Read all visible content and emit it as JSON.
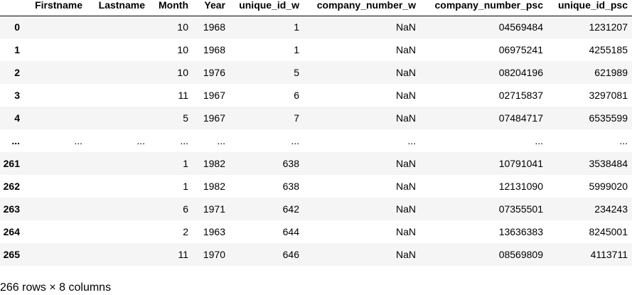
{
  "table": {
    "columns": [
      "",
      "Firstname",
      "Lastname",
      "Month",
      "Year",
      "unique_id_w",
      "company_number_w",
      "company_number_psc",
      "unique_id_psc"
    ],
    "rows": [
      {
        "index": "0",
        "cells": [
          "",
          "",
          "10",
          "1968",
          "1",
          "NaN",
          "04569484",
          "1231207"
        ]
      },
      {
        "index": "1",
        "cells": [
          "",
          "",
          "10",
          "1968",
          "1",
          "NaN",
          "06975241",
          "4255185"
        ]
      },
      {
        "index": "2",
        "cells": [
          "",
          "",
          "10",
          "1976",
          "5",
          "NaN",
          "08204196",
          "621989"
        ]
      },
      {
        "index": "3",
        "cells": [
          "",
          "",
          "11",
          "1967",
          "6",
          "NaN",
          "02715837",
          "3297081"
        ]
      },
      {
        "index": "4",
        "cells": [
          "",
          "",
          "5",
          "1967",
          "7",
          "NaN",
          "07484717",
          "6535599"
        ]
      },
      {
        "index": "...",
        "cells": [
          "...",
          "...",
          "...",
          "...",
          "...",
          "...",
          "...",
          "..."
        ]
      },
      {
        "index": "261",
        "cells": [
          "",
          "",
          "1",
          "1982",
          "638",
          "NaN",
          "10791041",
          "3538484"
        ]
      },
      {
        "index": "262",
        "cells": [
          "",
          "",
          "1",
          "1982",
          "638",
          "NaN",
          "12131090",
          "5999020"
        ]
      },
      {
        "index": "263",
        "cells": [
          "",
          "",
          "6",
          "1971",
          "642",
          "NaN",
          "07355501",
          "234243"
        ]
      },
      {
        "index": "264",
        "cells": [
          "",
          "",
          "2",
          "1963",
          "644",
          "NaN",
          "13636383",
          "8245001"
        ]
      },
      {
        "index": "265",
        "cells": [
          "",
          "",
          "11",
          "1970",
          "646",
          "NaN",
          "08569809",
          "4113711"
        ]
      }
    ]
  },
  "caption": "266 rows × 8 columns"
}
